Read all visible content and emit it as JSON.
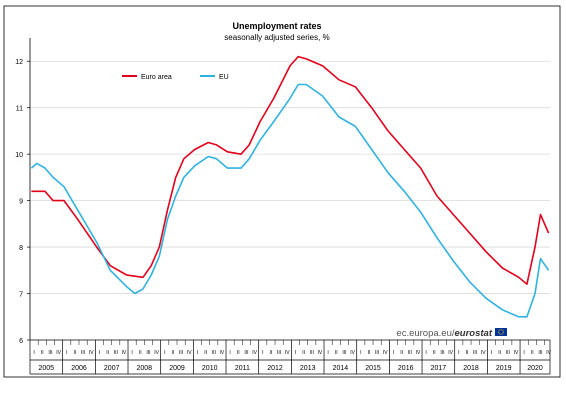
{
  "chart_data": {
    "type": "line",
    "title": "Unemployment rates",
    "subtitle": "seasonally adjusted series, %",
    "ylim": [
      6,
      12.5
    ],
    "y_ticks": [
      "6",
      "7",
      "8",
      "9",
      "10",
      "11",
      "12"
    ],
    "x_years": [
      "2005",
      "2006",
      "2007",
      "2008",
      "2009",
      "2010",
      "2011",
      "2012",
      "2013",
      "2014",
      "2015",
      "2016",
      "2017",
      "2018",
      "2019",
      "2020"
    ],
    "x_quarter_labels": [
      "I",
      "II",
      "III",
      "IV"
    ],
    "x_last_period": "2020M11",
    "grid": true,
    "legend_position": "top-left",
    "series": [
      {
        "name": "Euro area",
        "color": "#e3001b",
        "points": [
          [
            "2005-01",
            9.2
          ],
          [
            "2005-06",
            9.2
          ],
          [
            "2005-09",
            9.0
          ],
          [
            "2006-01",
            9.0
          ],
          [
            "2006-06",
            8.6
          ],
          [
            "2007-01",
            8.0
          ],
          [
            "2007-06",
            7.6
          ],
          [
            "2007-12",
            7.4
          ],
          [
            "2008-06",
            7.35
          ],
          [
            "2008-09",
            7.6
          ],
          [
            "2008-12",
            8.0
          ],
          [
            "2009-03",
            8.8
          ],
          [
            "2009-06",
            9.5
          ],
          [
            "2009-09",
            9.9
          ],
          [
            "2010-01",
            10.1
          ],
          [
            "2010-06",
            10.25
          ],
          [
            "2010-09",
            10.2
          ],
          [
            "2011-01",
            10.05
          ],
          [
            "2011-06",
            10.0
          ],
          [
            "2011-09",
            10.2
          ],
          [
            "2012-01",
            10.7
          ],
          [
            "2012-06",
            11.2
          ],
          [
            "2012-12",
            11.9
          ],
          [
            "2013-03",
            12.1
          ],
          [
            "2013-06",
            12.05
          ],
          [
            "2013-12",
            11.9
          ],
          [
            "2014-06",
            11.6
          ],
          [
            "2014-12",
            11.45
          ],
          [
            "2015-06",
            11.0
          ],
          [
            "2015-12",
            10.5
          ],
          [
            "2016-06",
            10.1
          ],
          [
            "2016-12",
            9.7
          ],
          [
            "2017-06",
            9.1
          ],
          [
            "2017-12",
            8.7
          ],
          [
            "2018-06",
            8.3
          ],
          [
            "2018-12",
            7.9
          ],
          [
            "2019-06",
            7.55
          ],
          [
            "2019-12",
            7.35
          ],
          [
            "2020-03",
            7.2
          ],
          [
            "2020-06",
            8.0
          ],
          [
            "2020-08",
            8.7
          ],
          [
            "2020-11",
            8.3
          ]
        ]
      },
      {
        "name": "EU",
        "color": "#2eb3e1",
        "points": [
          [
            "2005-01",
            9.7
          ],
          [
            "2005-03",
            9.8
          ],
          [
            "2005-06",
            9.7
          ],
          [
            "2005-09",
            9.5
          ],
          [
            "2006-01",
            9.3
          ],
          [
            "2006-06",
            8.8
          ],
          [
            "2007-01",
            8.1
          ],
          [
            "2007-06",
            7.5
          ],
          [
            "2007-12",
            7.15
          ],
          [
            "2008-03",
            7.0
          ],
          [
            "2008-06",
            7.1
          ],
          [
            "2008-09",
            7.4
          ],
          [
            "2008-12",
            7.8
          ],
          [
            "2009-03",
            8.6
          ],
          [
            "2009-06",
            9.1
          ],
          [
            "2009-09",
            9.5
          ],
          [
            "2010-01",
            9.75
          ],
          [
            "2010-06",
            9.95
          ],
          [
            "2010-09",
            9.9
          ],
          [
            "2011-01",
            9.7
          ],
          [
            "2011-06",
            9.7
          ],
          [
            "2011-09",
            9.9
          ],
          [
            "2012-01",
            10.3
          ],
          [
            "2012-06",
            10.7
          ],
          [
            "2012-12",
            11.2
          ],
          [
            "2013-03",
            11.5
          ],
          [
            "2013-06",
            11.5
          ],
          [
            "2013-12",
            11.25
          ],
          [
            "2014-06",
            10.8
          ],
          [
            "2014-12",
            10.6
          ],
          [
            "2015-06",
            10.1
          ],
          [
            "2015-12",
            9.6
          ],
          [
            "2016-06",
            9.2
          ],
          [
            "2016-12",
            8.75
          ],
          [
            "2017-06",
            8.2
          ],
          [
            "2017-12",
            7.7
          ],
          [
            "2018-06",
            7.25
          ],
          [
            "2018-12",
            6.9
          ],
          [
            "2019-06",
            6.65
          ],
          [
            "2019-12",
            6.5
          ],
          [
            "2020-03",
            6.5
          ],
          [
            "2020-06",
            7.0
          ],
          [
            "2020-08",
            7.75
          ],
          [
            "2020-11",
            7.5
          ]
        ]
      }
    ]
  },
  "footer": {
    "source_prefix": "ec.europa.eu/",
    "source_brand": "eurostat"
  },
  "colors": {
    "eu_flag_blue": "#003399",
    "eu_flag_stars": "#ffcc00"
  }
}
